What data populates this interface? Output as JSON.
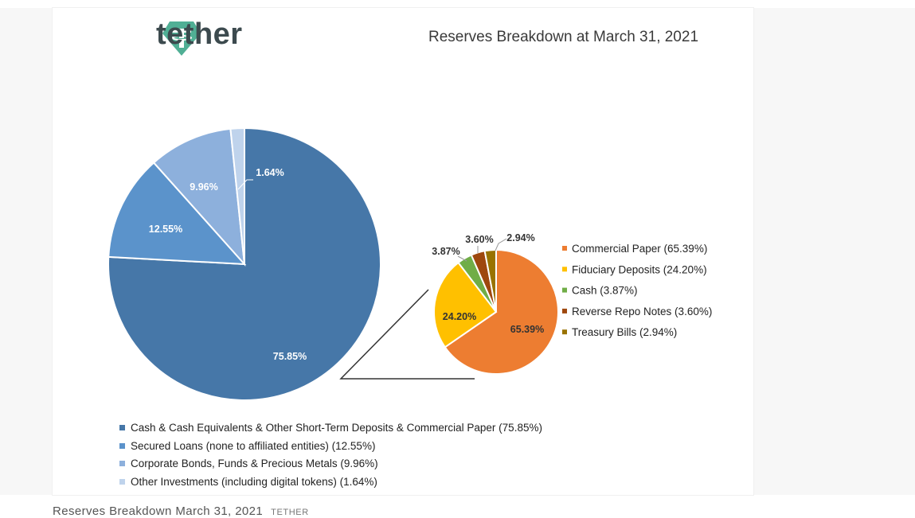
{
  "header": {
    "logo_word": "tether",
    "title": "Reserves Breakdown at March 31, 2021"
  },
  "colors": {
    "main_pie": [
      "#4677a8",
      "#5b93cb",
      "#8db0dc",
      "#bfd3ec"
    ],
    "sub_pie": [
      "#ed7d31",
      "#ffc000",
      "#70ad47",
      "#9e480e",
      "#997300"
    ],
    "logo_green": "#50af95"
  },
  "chart_data": [
    {
      "type": "pie",
      "title": "Reserves Breakdown at March 31, 2021",
      "slices": [
        {
          "label": "Cash & Cash Equivalents & Other Short-Term Deposits & Commercial Paper (75.85%)",
          "value": 75.85,
          "display": "75.85%"
        },
        {
          "label": "Secured Loans (none to affiliated entities) (12.55%)",
          "value": 12.55,
          "display": "12.55%"
        },
        {
          "label": "Corporate Bonds, Funds & Precious Metals (9.96%)",
          "value": 9.96,
          "display": "9.96%"
        },
        {
          "label": "Other Investments (including digital tokens) (1.64%)",
          "value": 1.64,
          "display": "1.64%"
        }
      ],
      "legend_position": "bottom"
    },
    {
      "type": "pie",
      "slices": [
        {
          "label": "Commercial Paper (65.39%)",
          "value": 65.39,
          "display": "65.39%"
        },
        {
          "label": "Fiduciary Deposits (24.20%)",
          "value": 24.2,
          "display": "24.20%"
        },
        {
          "label": "Cash (3.87%)",
          "value": 3.87,
          "display": "3.87%"
        },
        {
          "label": "Reverse Repo Notes (3.60%)",
          "value": 3.6,
          "display": "3.60%"
        },
        {
          "label": "Treasury Bills (2.94%)",
          "value": 2.94,
          "display": "2.94%"
        }
      ],
      "legend_position": "right"
    }
  ],
  "caption": {
    "text": "Reserves Breakdown March 31, 2021",
    "credit": "TETHER"
  }
}
